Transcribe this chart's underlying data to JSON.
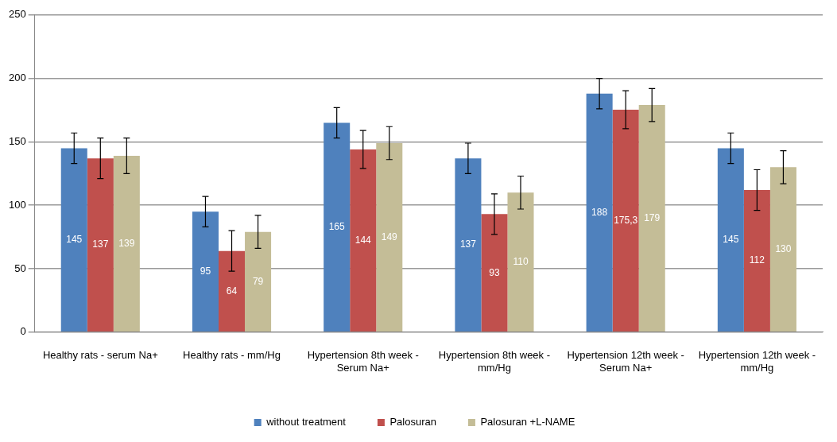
{
  "chart_data": {
    "type": "bar",
    "categories": [
      "Healthy rats - serum Na+",
      "Healthy rats - mm/Hg",
      "Hypertension 8th week - Serum Na+",
      "Hypertension 8th week - mm/Hg",
      "Hypertension 12th week - Serum Na+",
      "Hypertension 12th week - mm/Hg"
    ],
    "series": [
      {
        "name": "without treatment",
        "color": "#4f81bd",
        "values": [
          145,
          95,
          165,
          137,
          188,
          145
        ],
        "errors": [
          12,
          12,
          12,
          12,
          12,
          12
        ],
        "value_labels": [
          "145",
          "95",
          "165",
          "137",
          "188",
          "145"
        ]
      },
      {
        "name": "Palosuran",
        "color": "#c0504d",
        "values": [
          137,
          64,
          144,
          93,
          175.3,
          112
        ],
        "errors": [
          16,
          16,
          15,
          16,
          15,
          16
        ],
        "value_labels": [
          "137",
          "64",
          "144",
          "93",
          "175,3",
          "112"
        ]
      },
      {
        "name": "Palosuran +L-NAME",
        "color": "#c4bd97",
        "values": [
          139,
          79,
          149,
          110,
          179,
          130
        ],
        "errors": [
          14,
          13,
          13,
          13,
          13,
          13
        ],
        "value_labels": [
          "139",
          "79",
          "149",
          "110",
          "179",
          "130"
        ]
      }
    ],
    "ylim": [
      0,
      250
    ],
    "yticks": [
      0,
      50,
      100,
      150,
      200,
      250
    ],
    "grid": "y",
    "legend": "bottom"
  }
}
